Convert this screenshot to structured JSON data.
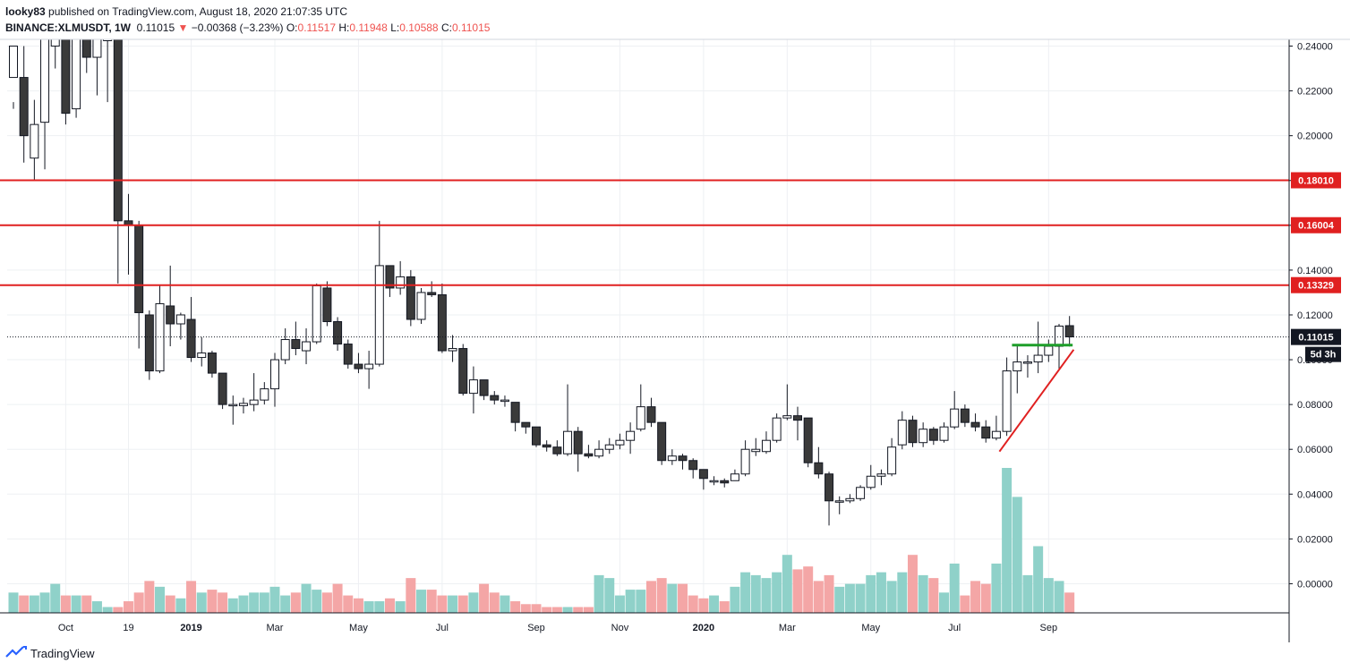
{
  "header": {
    "publisher": "looky83",
    "published_text": "published on TradingView.com, August 18, 2020 21:07:35 UTC",
    "symbol": "BINANCE:XLMUSDT, 1W",
    "last": "0.11015",
    "change": "−0.00368 (−3.23%)",
    "o_label": "O:",
    "o_value": "0.11517",
    "h_label": "H:",
    "h_value": "0.11948",
    "l_label": "L:",
    "l_value": "0.10588",
    "c_label": "C:",
    "c_value": "0.11015"
  },
  "footer": {
    "brand": "TradingView"
  },
  "colors": {
    "up_candle_fill": "#ffffff",
    "down_candle_fill": "#3a3a3a",
    "candle_stroke": "#131722",
    "volume_up": "#8fd1c9",
    "volume_down": "#f4a6a6",
    "level_line": "#e02020",
    "support_green": "#1e9e2a",
    "trend_red": "#e02020",
    "grid": "#eef0f3"
  },
  "chart_data": {
    "type": "candlestick",
    "y_range": [
      -0.013,
      0.243
    ],
    "y_ticks": [
      "0.24000",
      "0.22000",
      "0.20000",
      "0.18000",
      "0.16000",
      "0.14000",
      "0.12000",
      "0.10000",
      "0.08000",
      "0.06000",
      "0.04000",
      "0.02000",
      "0.00000"
    ],
    "x_ticks": [
      {
        "label": "Oct",
        "week": 5
      },
      {
        "label": "19",
        "week": 11
      },
      {
        "label": "2019",
        "week": 17
      },
      {
        "label": "Mar",
        "week": 25
      },
      {
        "label": "May",
        "week": 33
      },
      {
        "label": "Jul",
        "week": 41
      },
      {
        "label": "Sep",
        "week": 50
      },
      {
        "label": "Nov",
        "week": 58
      },
      {
        "label": "2020",
        "week": 66
      },
      {
        "label": "Mar",
        "week": 74
      },
      {
        "label": "May",
        "week": 82
      },
      {
        "label": "Jul",
        "week": 90
      },
      {
        "label": "Sep",
        "week": 99
      }
    ],
    "levels": [
      {
        "price": 0.1801,
        "label": "0.18010"
      },
      {
        "price": 0.16004,
        "label": "0.16004"
      },
      {
        "price": 0.13329,
        "label": "0.13329"
      }
    ],
    "last_price": {
      "price": 0.11015,
      "label": "0.11015",
      "countdown": "5d 3h"
    },
    "candles": [
      [
        0.226,
        0.24,
        0.215,
        0.212
      ],
      [
        0.226,
        0.2,
        0.24,
        0.188
      ],
      [
        0.19,
        0.205,
        0.216,
        0.18
      ],
      [
        0.206,
        0.248,
        0.248,
        0.185
      ],
      [
        0.24,
        0.25,
        0.25,
        0.23
      ],
      [
        0.255,
        0.21,
        0.26,
        0.205
      ],
      [
        0.212,
        0.25,
        0.25,
        0.208
      ],
      [
        0.25,
        0.235,
        0.26,
        0.228
      ],
      [
        0.235,
        0.25,
        0.25,
        0.218
      ],
      [
        0.25,
        0.25,
        0.25,
        0.215
      ],
      [
        0.25,
        0.162,
        0.25,
        0.134
      ],
      [
        0.162,
        0.16,
        0.174,
        0.138
      ],
      [
        0.16,
        0.121,
        0.162,
        0.105
      ],
      [
        0.12,
        0.095,
        0.122,
        0.091
      ],
      [
        0.095,
        0.125,
        0.133,
        0.094
      ],
      [
        0.124,
        0.116,
        0.142,
        0.106
      ],
      [
        0.116,
        0.12,
        0.121,
        0.109
      ],
      [
        0.118,
        0.101,
        0.128,
        0.099
      ],
      [
        0.101,
        0.103,
        0.11,
        0.097
      ],
      [
        0.103,
        0.094,
        0.104,
        0.092
      ],
      [
        0.094,
        0.08,
        0.094,
        0.078
      ],
      [
        0.08,
        0.08,
        0.084,
        0.071
      ],
      [
        0.0795,
        0.0805,
        0.083,
        0.076
      ],
      [
        0.08,
        0.082,
        0.094,
        0.077
      ],
      [
        0.082,
        0.087,
        0.09,
        0.08
      ],
      [
        0.087,
        0.1,
        0.103,
        0.079
      ],
      [
        0.1,
        0.109,
        0.114,
        0.098
      ],
      [
        0.109,
        0.105,
        0.117,
        0.102
      ],
      [
        0.104,
        0.108,
        0.114,
        0.098
      ],
      [
        0.108,
        0.133,
        0.134,
        0.107
      ],
      [
        0.132,
        0.117,
        0.135,
        0.115
      ],
      [
        0.117,
        0.107,
        0.119,
        0.104
      ],
      [
        0.107,
        0.098,
        0.109,
        0.096
      ],
      [
        0.098,
        0.096,
        0.103,
        0.094
      ],
      [
        0.096,
        0.098,
        0.104,
        0.087
      ],
      [
        0.098,
        0.142,
        0.162,
        0.097
      ],
      [
        0.142,
        0.132,
        0.142,
        0.128
      ],
      [
        0.132,
        0.137,
        0.144,
        0.129
      ],
      [
        0.137,
        0.118,
        0.14,
        0.115
      ],
      [
        0.118,
        0.13,
        0.132,
        0.116
      ],
      [
        0.13,
        0.129,
        0.135,
        0.128
      ],
      [
        0.129,
        0.104,
        0.134,
        0.103
      ],
      [
        0.104,
        0.105,
        0.111,
        0.099
      ],
      [
        0.105,
        0.085,
        0.107,
        0.084
      ],
      [
        0.085,
        0.091,
        0.097,
        0.076
      ],
      [
        0.091,
        0.084,
        0.091,
        0.082
      ],
      [
        0.084,
        0.082,
        0.086,
        0.08
      ],
      [
        0.082,
        0.082,
        0.084,
        0.079
      ],
      [
        0.081,
        0.072,
        0.081,
        0.068
      ],
      [
        0.072,
        0.07,
        0.072,
        0.067
      ],
      [
        0.07,
        0.062,
        0.07,
        0.061
      ],
      [
        0.062,
        0.061,
        0.064,
        0.059
      ],
      [
        0.061,
        0.058,
        0.064,
        0.057
      ],
      [
        0.058,
        0.068,
        0.089,
        0.057
      ],
      [
        0.068,
        0.058,
        0.07,
        0.05
      ],
      [
        0.058,
        0.057,
        0.062,
        0.056
      ],
      [
        0.057,
        0.06,
        0.064,
        0.056
      ],
      [
        0.06,
        0.062,
        0.065,
        0.058
      ],
      [
        0.062,
        0.064,
        0.067,
        0.06
      ],
      [
        0.064,
        0.068,
        0.072,
        0.058
      ],
      [
        0.069,
        0.079,
        0.089,
        0.068
      ],
      [
        0.079,
        0.072,
        0.083,
        0.07
      ],
      [
        0.072,
        0.055,
        0.072,
        0.053
      ],
      [
        0.055,
        0.057,
        0.06,
        0.053
      ],
      [
        0.057,
        0.055,
        0.058,
        0.051
      ],
      [
        0.055,
        0.051,
        0.056,
        0.047
      ],
      [
        0.051,
        0.047,
        0.051,
        0.042
      ],
      [
        0.046,
        0.046,
        0.048,
        0.044
      ],
      [
        0.046,
        0.045,
        0.047,
        0.043
      ],
      [
        0.046,
        0.049,
        0.051,
        0.046
      ],
      [
        0.049,
        0.06,
        0.064,
        0.048
      ],
      [
        0.059,
        0.06,
        0.065,
        0.057
      ],
      [
        0.059,
        0.064,
        0.068,
        0.058
      ],
      [
        0.064,
        0.074,
        0.076,
        0.063
      ],
      [
        0.074,
        0.075,
        0.089,
        0.073
      ],
      [
        0.075,
        0.073,
        0.079,
        0.064
      ],
      [
        0.074,
        0.054,
        0.074,
        0.052
      ],
      [
        0.054,
        0.049,
        0.061,
        0.047
      ],
      [
        0.049,
        0.037,
        0.05,
        0.026
      ],
      [
        0.037,
        0.037,
        0.039,
        0.031
      ],
      [
        0.037,
        0.038,
        0.04,
        0.036
      ],
      [
        0.038,
        0.043,
        0.044,
        0.037
      ],
      [
        0.043,
        0.048,
        0.053,
        0.042
      ],
      [
        0.048,
        0.049,
        0.051,
        0.044
      ],
      [
        0.049,
        0.061,
        0.065,
        0.048
      ],
      [
        0.062,
        0.073,
        0.077,
        0.06
      ],
      [
        0.073,
        0.063,
        0.075,
        0.061
      ],
      [
        0.063,
        0.069,
        0.072,
        0.061
      ],
      [
        0.069,
        0.064,
        0.07,
        0.062
      ],
      [
        0.064,
        0.07,
        0.072,
        0.063
      ],
      [
        0.07,
        0.078,
        0.086,
        0.069
      ],
      [
        0.078,
        0.072,
        0.08,
        0.07
      ],
      [
        0.072,
        0.07,
        0.076,
        0.068
      ],
      [
        0.07,
        0.065,
        0.073,
        0.063
      ],
      [
        0.065,
        0.068,
        0.075,
        0.064
      ],
      [
        0.068,
        0.095,
        0.101,
        0.066
      ],
      [
        0.095,
        0.099,
        0.107,
        0.085
      ],
      [
        0.099,
        0.099,
        0.102,
        0.092
      ],
      [
        0.099,
        0.102,
        0.117,
        0.094
      ],
      [
        0.102,
        0.106,
        0.109,
        0.099
      ],
      [
        0.106,
        0.115,
        0.116,
        0.096
      ],
      [
        0.1152,
        0.1102,
        0.1195,
        0.1059
      ]
    ],
    "volume_scale_max": 0.05,
    "volume": [
      0.007,
      0.006,
      0.006,
      0.007,
      0.01,
      0.006,
      0.006,
      0.006,
      0.004,
      0.002,
      0.002,
      0.004,
      0.007,
      0.011,
      0.009,
      0.006,
      0.005,
      0.011,
      0.007,
      0.008,
      0.007,
      0.005,
      0.006,
      0.007,
      0.007,
      0.009,
      0.006,
      0.007,
      0.01,
      0.008,
      0.007,
      0.01,
      0.006,
      0.005,
      0.004,
      0.004,
      0.005,
      0.004,
      0.012,
      0.008,
      0.008,
      0.006,
      0.006,
      0.006,
      0.007,
      0.01,
      0.007,
      0.006,
      0.004,
      0.003,
      0.003,
      0.002,
      0.002,
      0.002,
      0.002,
      0.002,
      0.013,
      0.012,
      0.006,
      0.008,
      0.008,
      0.011,
      0.012,
      0.01,
      0.01,
      0.006,
      0.005,
      0.006,
      0.004,
      0.009,
      0.014,
      0.013,
      0.012,
      0.014,
      0.02,
      0.015,
      0.016,
      0.011,
      0.013,
      0.009,
      0.01,
      0.01,
      0.013,
      0.014,
      0.011,
      0.014,
      0.02,
      0.013,
      0.012,
      0.007,
      0.017,
      0.006,
      0.011,
      0.01,
      0.017,
      0.05,
      0.04,
      0.013,
      0.023,
      0.012,
      0.011,
      0.007
    ]
  }
}
